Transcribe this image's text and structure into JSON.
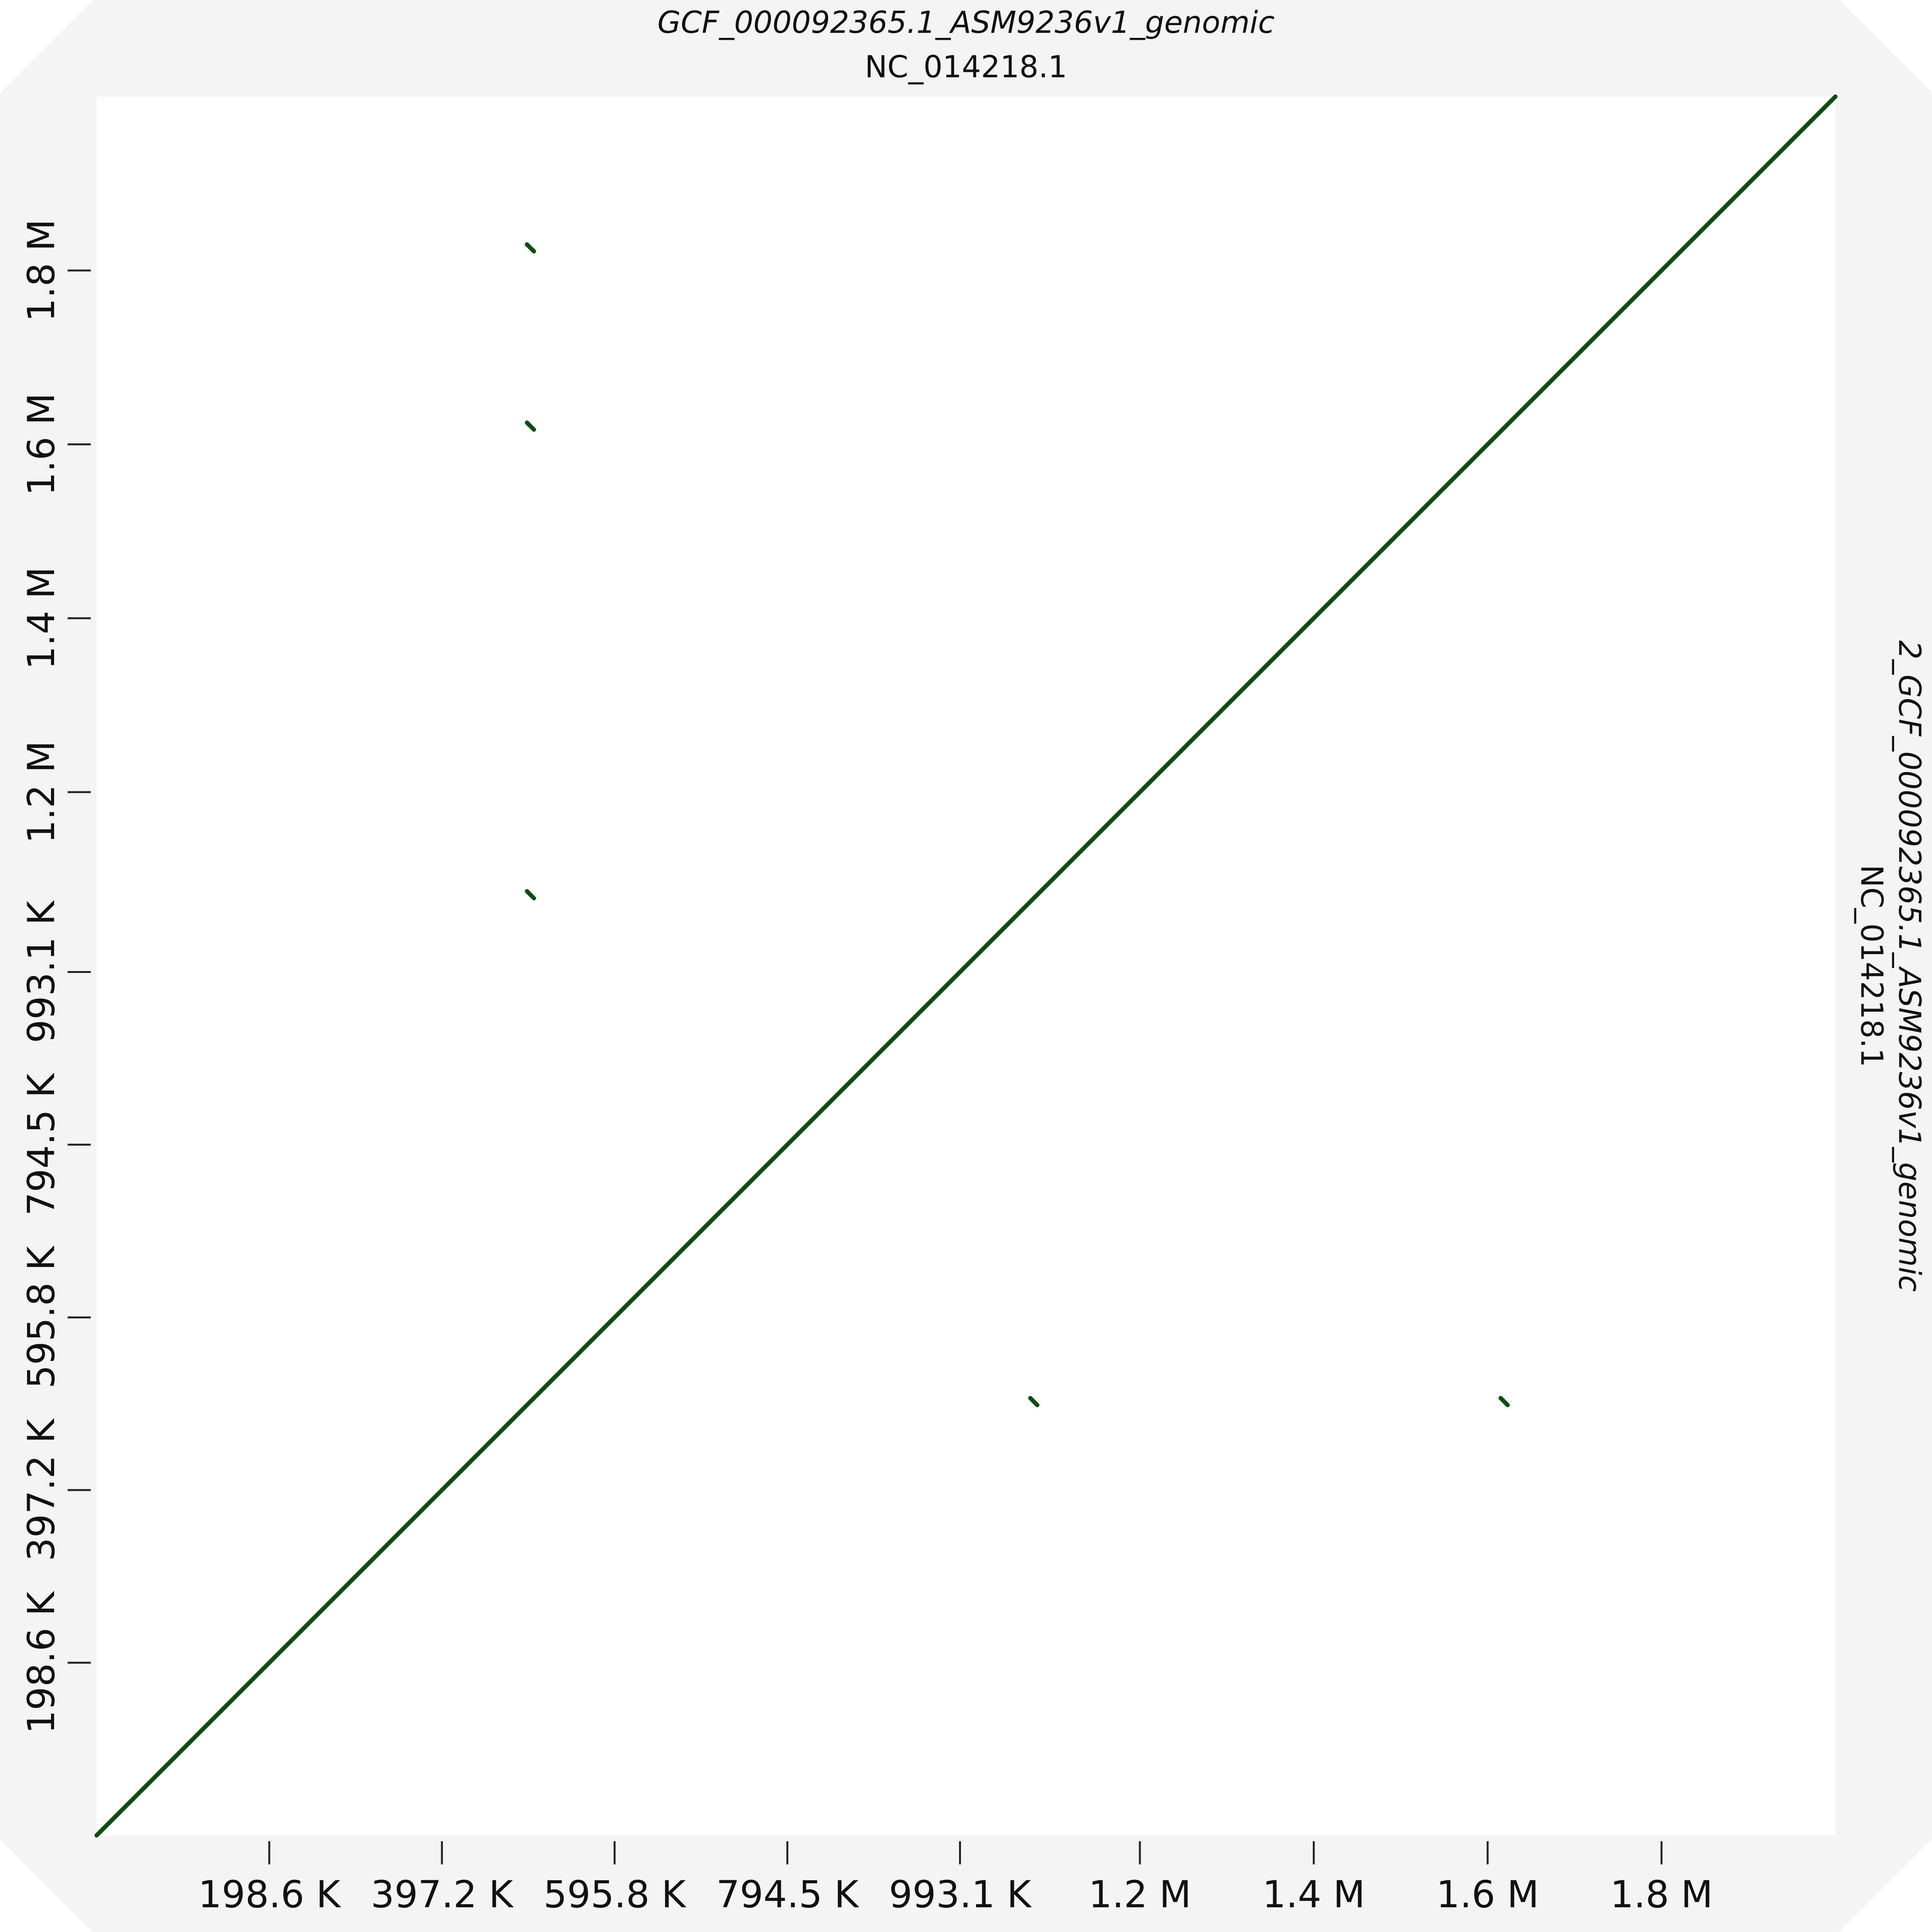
{
  "chart_data": {
    "type": "dotplot",
    "title": "GCF_000092365.1_ASM9236v1_genomic",
    "subtitle": "NC_014218.1",
    "right_label": "2_GCF_000092365.1_ASM9236v1_genomic",
    "right_sublabel": "NC_014218.1",
    "xlim": [
      0,
      2000000
    ],
    "ylim": [
      0,
      2000000
    ],
    "x_ticks": [
      {
        "value": 198600,
        "label": "198.6 K"
      },
      {
        "value": 397200,
        "label": "397.2 K"
      },
      {
        "value": 595800,
        "label": "595.8 K"
      },
      {
        "value": 794500,
        "label": "794.5 K"
      },
      {
        "value": 993100,
        "label": "993.1 K"
      },
      {
        "value": 1200000,
        "label": "1.2 M"
      },
      {
        "value": 1400000,
        "label": "1.4 M"
      },
      {
        "value": 1600000,
        "label": "1.6 M"
      },
      {
        "value": 1800000,
        "label": "1.8 M"
      }
    ],
    "y_ticks": [
      {
        "value": 198600,
        "label": "198.6 K"
      },
      {
        "value": 397200,
        "label": "397.2 K"
      },
      {
        "value": 595800,
        "label": "595.8 K"
      },
      {
        "value": 794500,
        "label": "794.5 K"
      },
      {
        "value": 993100,
        "label": "993.1 K"
      },
      {
        "value": 1200000,
        "label": "1.2 M"
      },
      {
        "value": 1400000,
        "label": "1.4 M"
      },
      {
        "value": 1600000,
        "label": "1.6 M"
      },
      {
        "value": 1800000,
        "label": "1.8 M"
      }
    ],
    "segments": [
      {
        "x1": 0,
        "y1": 0,
        "x2": 2000000,
        "y2": 2000000
      },
      {
        "x1": 495000,
        "y1": 1830000,
        "x2": 503000,
        "y2": 1822000
      },
      {
        "x1": 495000,
        "y1": 1625000,
        "x2": 503000,
        "y2": 1617000
      },
      {
        "x1": 495000,
        "y1": 1086000,
        "x2": 503000,
        "y2": 1078000
      },
      {
        "x1": 1074000,
        "y1": 503000,
        "x2": 1082000,
        "y2": 495000
      },
      {
        "x1": 1615000,
        "y1": 503000,
        "x2": 1623000,
        "y2": 495000
      }
    ],
    "colors": {
      "segment": "#0d4d12",
      "background": "#f4f4f4",
      "plot": "#ffffff",
      "tick": "#222222"
    }
  }
}
